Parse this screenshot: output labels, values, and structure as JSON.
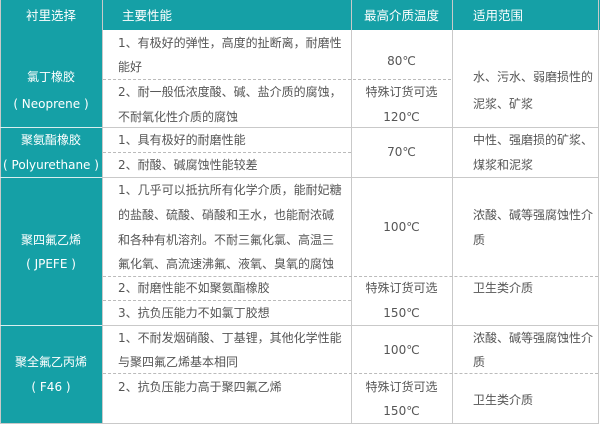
{
  "colors": {
    "header_bg": "#15a0a6",
    "text": "#555555"
  },
  "header": [
    "衬里选择",
    "主要性能",
    "最高介质温度",
    "适用范围"
  ],
  "rows": [
    {
      "lining": [
        "氯丁橡胶",
        "( Neoprene )"
      ],
      "properties": [
        [
          "1、有极好的弹性，高度的扯断离，耐磨性",
          "能好"
        ],
        [
          "2、耐一般低浓度酸、碱、盐介质的腐蚀，",
          "不耐氧化性介质的腐蚀"
        ]
      ],
      "temperature": [
        "80℃",
        "特殊订货可选",
        "120℃"
      ],
      "application": [
        [
          "水、污水、弱磨损性的",
          "泥浆、矿浆"
        ]
      ]
    },
    {
      "lining": [
        "聚氨酯橡胶",
        "( Polyurethane )"
      ],
      "properties": [
        [
          "1、具有极好的耐磨性能"
        ],
        [
          "2、耐酸、碱腐蚀性能较差"
        ]
      ],
      "temperature": [
        "70℃"
      ],
      "application": [
        [
          "中性、强磨损的矿浆、",
          "煤浆和泥浆"
        ]
      ]
    },
    {
      "lining": [
        "聚四氟乙烯",
        "( JPEFE )"
      ],
      "properties": [
        [
          "1、几乎可以抵抗所有化学介质，能耐妃糖",
          "的盐酸、硫酸、硝酸和王水，也能耐浓碱",
          "和各种有机溶剂。不耐三氟化氯、高温三",
          "氟化氧、高流速沸氟、液氧、臭氧的腐蚀"
        ],
        [
          "2、耐磨性能不如聚氨酯橡胶"
        ],
        [
          "3、抗负压能力不如氯丁胶想"
        ]
      ],
      "temperature": [
        "100℃",
        "特殊订货可选",
        "150℃"
      ],
      "application": [
        [
          "浓酸、碱等强腐蚀性介",
          "质"
        ],
        [
          "卫生类介质"
        ]
      ]
    },
    {
      "lining": [
        "聚全氟乙丙烯",
        "( F46 )"
      ],
      "properties": [
        [
          "1、不耐发烟硝酸、丁基锂，其他化学性能",
          "与聚四氟乙烯基本相同"
        ],
        [
          "2、抗负压能力高于聚四氟乙烯"
        ]
      ],
      "temperature": [
        "100℃",
        "特殊订货可选",
        "150℃"
      ],
      "application": [
        [
          "浓酸、碱等强腐蚀性介",
          "质"
        ],
        [
          "卫生类介质"
        ]
      ]
    }
  ]
}
